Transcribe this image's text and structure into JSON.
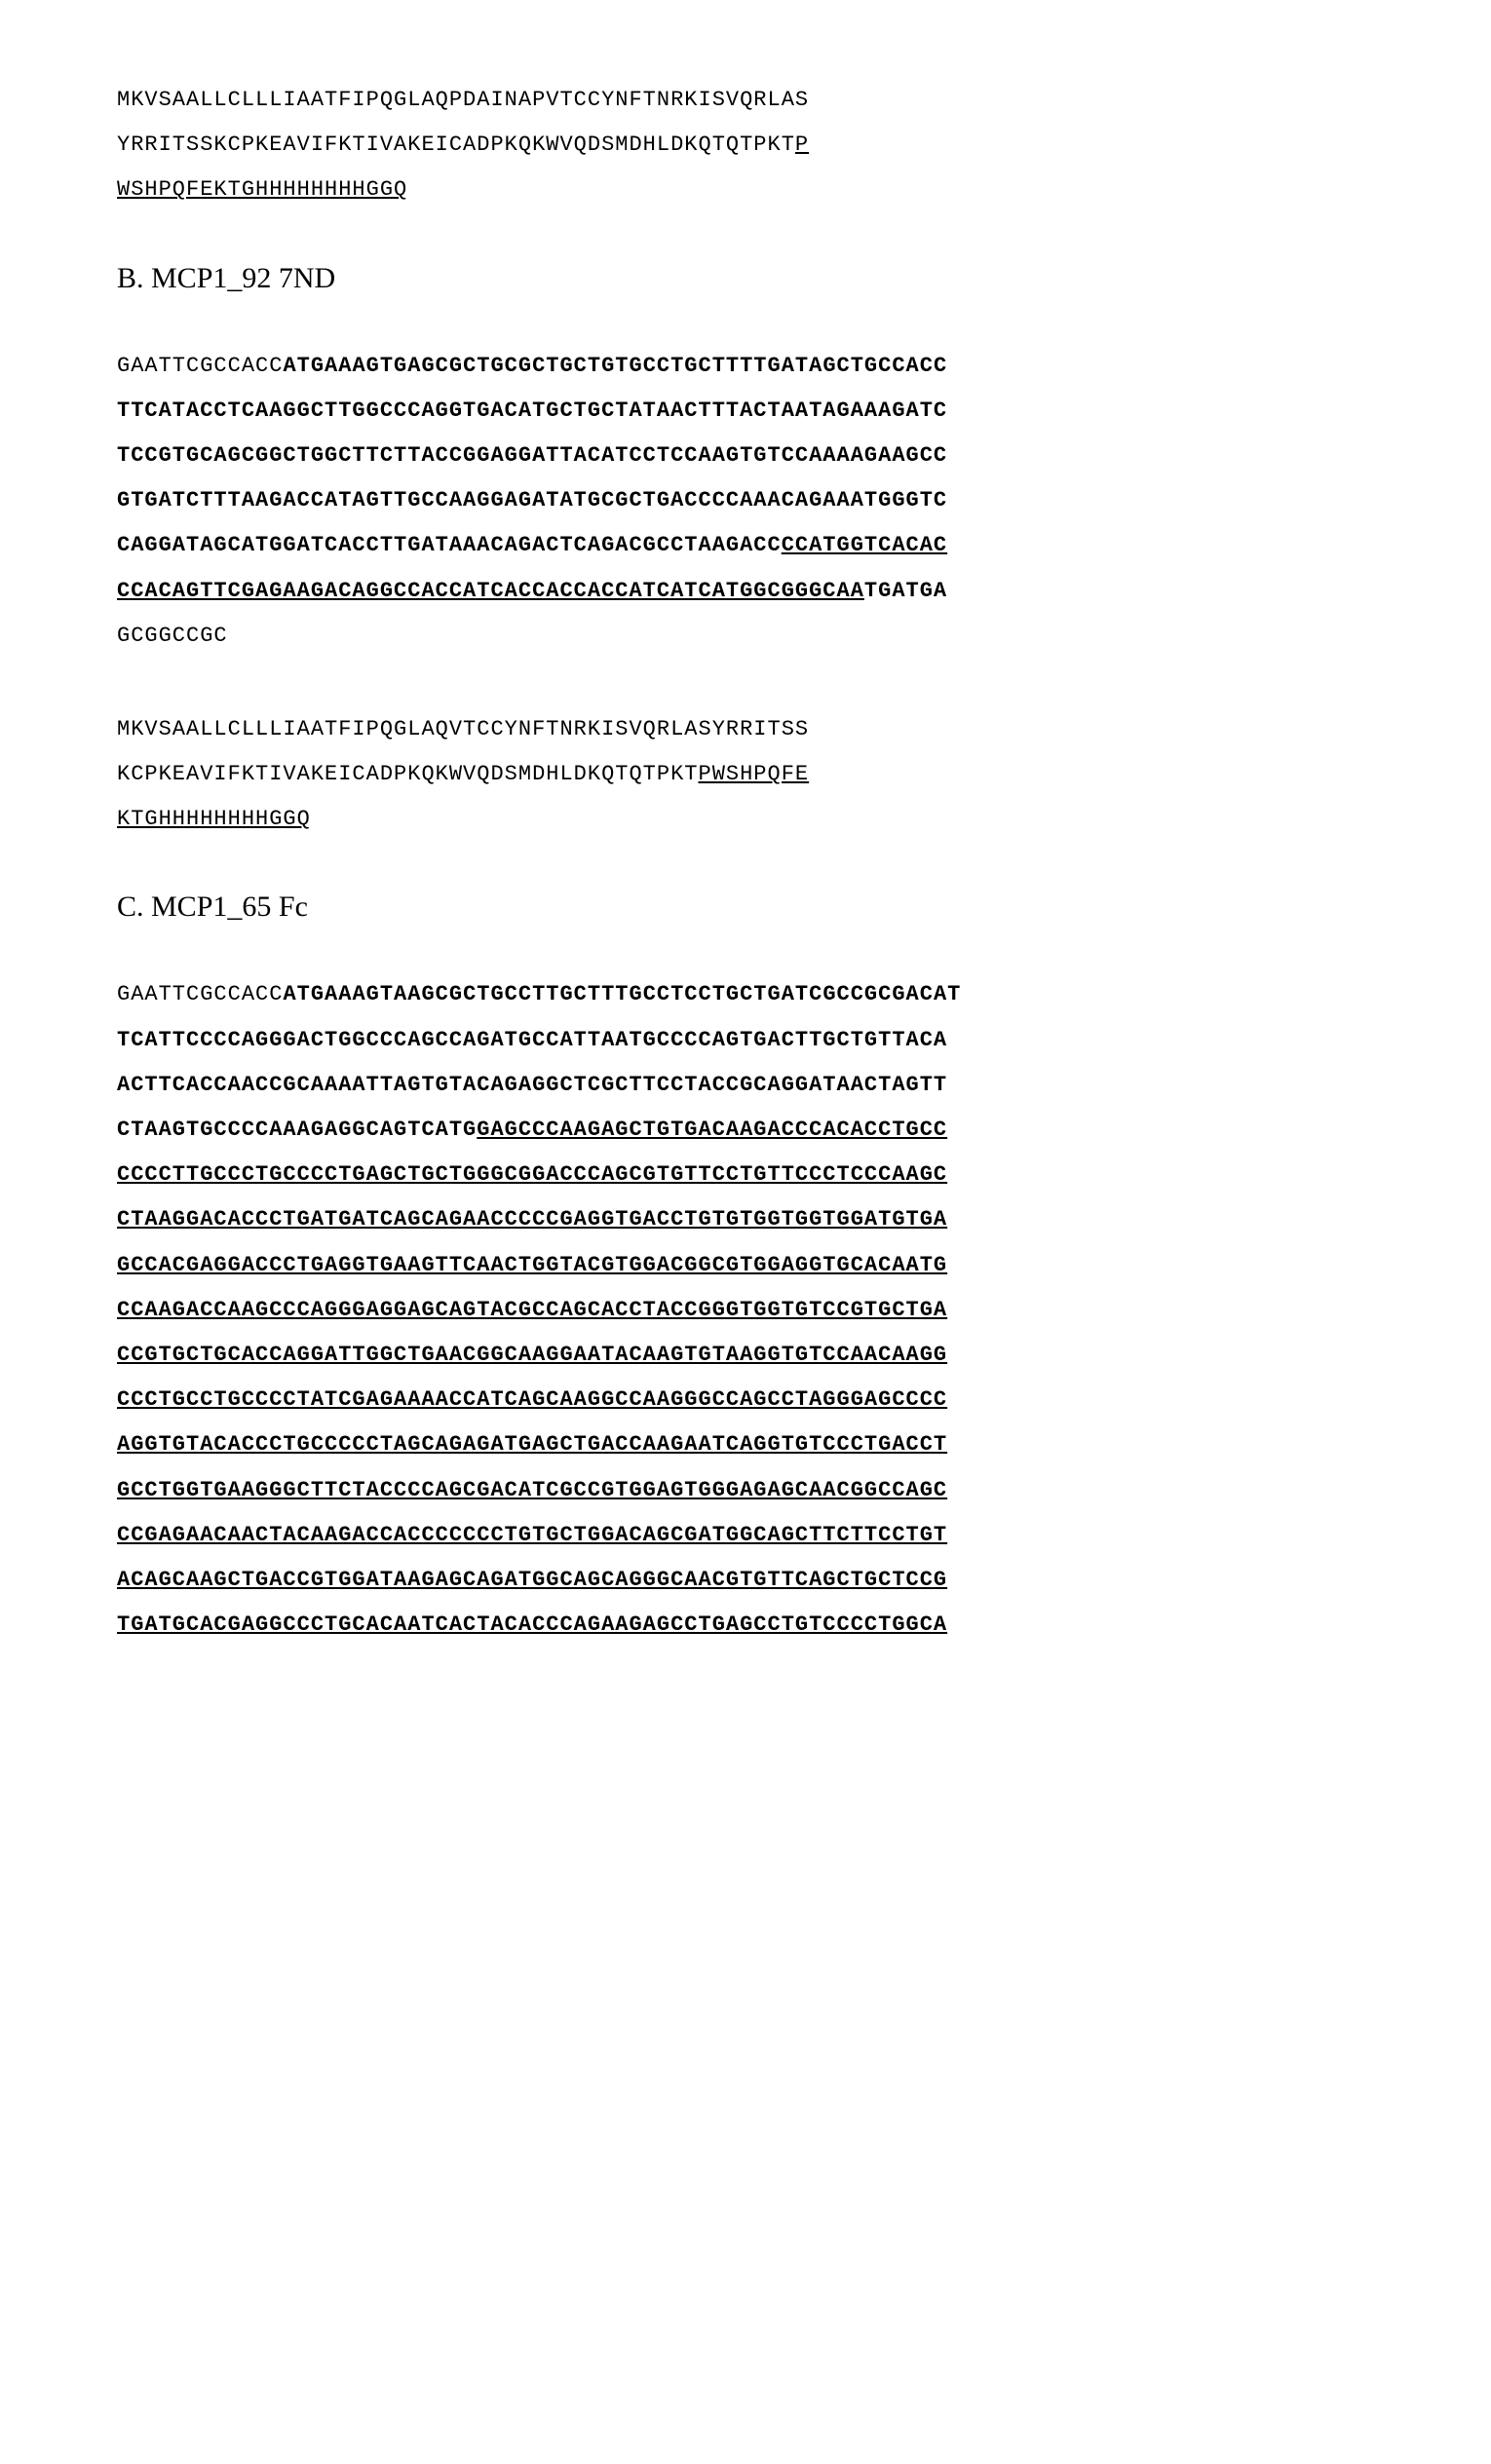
{
  "prot1": {
    "plain1": "MKVSAALLCLLLIAATFIPQGLAQPDAINAPVTCCYNFTNRKISVQRLAS\nYRRITSSKCPKEAVIFKTIVAKEICADPKQKWVQDSMDHLDKQTQTPKT",
    "ul1": "P\nWSHPQFEKTGHHHHHHHHGGQ"
  },
  "headB": "B. MCP1_92 7ND",
  "dnaB": {
    "plain1": "GAATTCGCCACC",
    "bold1": "ATGAAAGTGAGCGCTGCGCTGCTGTGCCTGCTTTTGATAGCTGCCACC\nTTCATACCTCAAGGCTTGGCCCAGGTGACATGCTGCTATAACTTTACTAATAGAAAGATC\nTCCGTGCAGCGGCTGGCTTCTTACCGGAGGATTACATCCTCCAAGTGTCCAAAAGAAGCC\nGTGATCTTTAAGACCATAGTTGCCAAGGAGATATGCGCTGACCCCAAACAGAAATGGGTC\nCAGGATAGCATGGATCACCTTGATAAACAGACTCAGACGCCTAAGACC",
    "boldul1": "CCATGGTCACAC\nCCACAGTTCGAGAAGACAGGCCACCATCACCACCACCATCATCATGGCGGGCAA",
    "bold2": "TGATGA",
    "plain2": "\nGCGGCCGC"
  },
  "protB": {
    "plain1": "MKVSAALLCLLLIAATFIPQGLAQVTCCYNFTNRKISVQRLASYRRITSS\nKCPKEAVIFKTIVAKEICADPKQKWVQDSMDHLDKQTQTPKT",
    "ul1": "PWSHPQFE\nKTGHHHHHHHHGGQ"
  },
  "headC": "C. MCP1_65 Fc",
  "dnaC": {
    "plain1": "GAATTCGCCACC",
    "bold1": "ATGAAAGTAAGCGCTGCCTTGCTTTGCCTCCTGCTGATCGCCGCGACAT\nTCATTCCCCAGGGACTGGCCCAGCCAGATGCCATTAATGCCCCAGTGACTTGCTGTTACA\nACTTCACCAACCGCAAAATTAGTGTACAGAGGCTCGCTTCCTACCGCAGGATAACTAGTT\nCTAAGTGCCCCAAAGAGGCAGTCATG",
    "boldul1": "GAGCCCAAGAGCTGTGACAAGACCCACACCTGCC\nCCCCTTGCCCTGCCCCTGAGCTGCTGGGCGGACCCAGCGTGTTCCTGTTCCCTCCCAAGC\nCTAAGGACACCCTGATGATCAGCAGAACCCCCGAGGTGACCTGTGTGGTGGTGGATGTGA\nGCCACGAGGACCCTGAGGTGAAGTTCAACTGGTACGTGGACGGCGTGGAGGTGCACAATG\nCCAAGACCAAGCCCAGGGAGGAGCAGTACGCCAGCACCTACCGGGTGGTGTCCGTGCTGA\nCCGTGCTGCACCAGGATTGGCTGAACGGCAAGGAATACAAGTGTAAGGTGTCCAACAAGG\nCCCTGCCTGCCCCTATCGAGAAAACCATCAGCAAGGCCAAGGGCCAGCCTAGGGAGCCCC\nAGGTGTACACCCTGCCCCCTAGCAGAGATGAGCTGACCAAGAATCAGGTGTCCCTGACCT\nGCCTGGTGAAGGGCTTCTACCCCAGCGACATCGCCGTGGAGTGGGAGAGCAACGGCCAGC\nCCGAGAACAACTACAAGACCACCCCCCCTGTGCTGGACAGCGATGGCAGCTTCTTCCTGT\nACAGCAAGCTGACCGTGGATAAGAGCAGATGGCAGCAGGGCAACGTGTTCAGCTGCTCCG\nTGATGCACGAGGCCCTGCACAATCACTACACCCAGAAGAGCCTGAGCCTGTCCCCTGGCA"
  }
}
